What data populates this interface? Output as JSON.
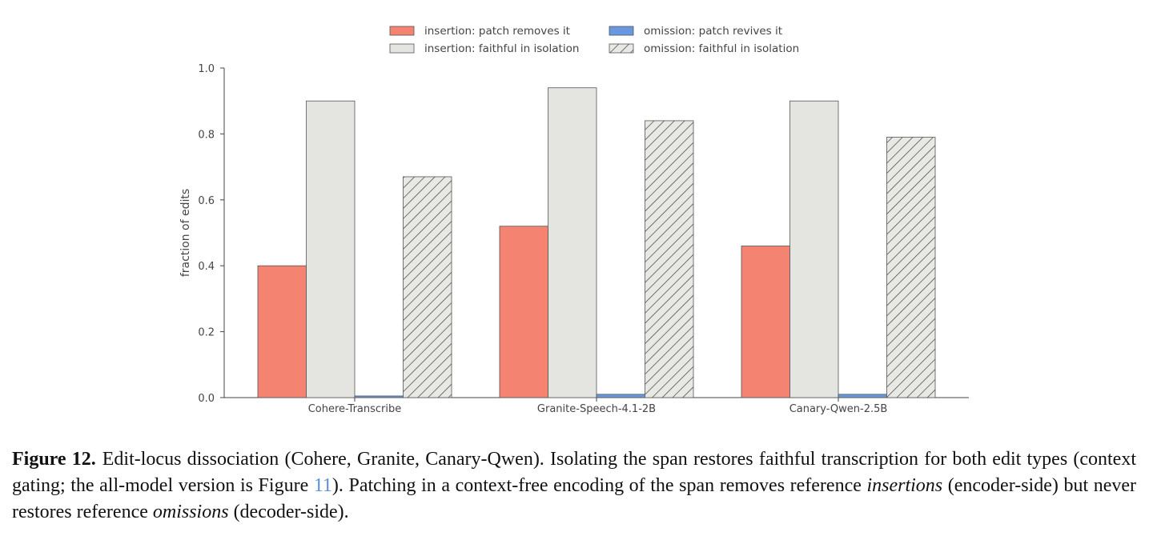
{
  "chart_data": {
    "type": "bar",
    "categories": [
      "Cohere-Transcribe",
      "Granite-Speech-4.1-2B",
      "Canary-Qwen-2.5B"
    ],
    "series": [
      {
        "name": "insertion: patch removes it",
        "values": [
          0.4,
          0.52,
          0.46
        ],
        "color": "#f48371",
        "pattern": "solid"
      },
      {
        "name": "insertion: faithful in isolation",
        "values": [
          0.9,
          0.94,
          0.9
        ],
        "color": "#e4e4e0",
        "pattern": "solid"
      },
      {
        "name": "omission: patch revives it",
        "values": [
          0.005,
          0.01,
          0.01
        ],
        "color": "#6a98e0",
        "pattern": "solid"
      },
      {
        "name": "omission: faithful in isolation",
        "values": [
          0.67,
          0.84,
          0.79
        ],
        "color": "#e8e8e4",
        "pattern": "hatch"
      }
    ],
    "ylabel": "fraction of edits",
    "xlabel": "",
    "ylim": [
      0,
      1.0
    ],
    "yticks": [
      "0.0",
      "0.2",
      "0.4",
      "0.6",
      "0.8",
      "1.0"
    ],
    "grid": false,
    "legend_position": "top-center"
  },
  "caption": {
    "label": "Figure 12.",
    "text_1": "Edit-locus dissociation (Cohere, Granite, Canary-Qwen).  Isolating the span restores faithful transcription for both edit types (context gating; the all-model version is Figure ",
    "link": "11",
    "text_2": ").  Patching in a context-free encoding of the span removes reference ",
    "em_1": "insertions",
    "text_3": " (encoder-side) but never restores reference ",
    "em_2": "omissions",
    "text_4": " (decoder-side)."
  }
}
